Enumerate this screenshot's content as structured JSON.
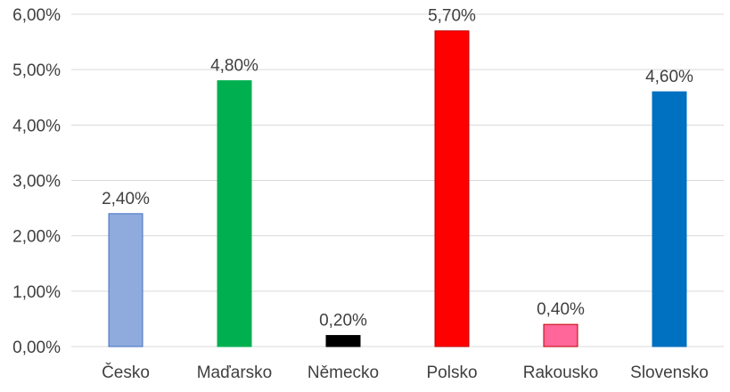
{
  "chart_data": {
    "type": "bar",
    "title": "",
    "xlabel": "",
    "ylabel": "",
    "categories": [
      "Česko",
      "Maďarsko",
      "Německo",
      "Polsko",
      "Rakousko",
      "Slovensko"
    ],
    "values": [
      2.4,
      4.8,
      0.2,
      5.7,
      0.4,
      4.6
    ],
    "value_labels": [
      "2,40%",
      "4,80%",
      "0,20%",
      "5,70%",
      "0,40%",
      "4,60%"
    ],
    "bar_colors": [
      "#8faadc",
      "#00b050",
      "#000000",
      "#ff0000",
      "#ff6699",
      "#0070c0"
    ],
    "bar_edge_colors": [
      "#4472c4",
      "#00b050",
      "#000000",
      "#c00000",
      "#c00000",
      "#0070c0"
    ],
    "ylim": [
      0,
      6
    ],
    "y_ticks": [
      0,
      1,
      2,
      3,
      4,
      5,
      6
    ],
    "y_tick_labels": [
      "0,00%",
      "1,00%",
      "2,00%",
      "3,00%",
      "4,00%",
      "5,00%",
      "6,00%"
    ],
    "grid": true,
    "legend": "none"
  }
}
